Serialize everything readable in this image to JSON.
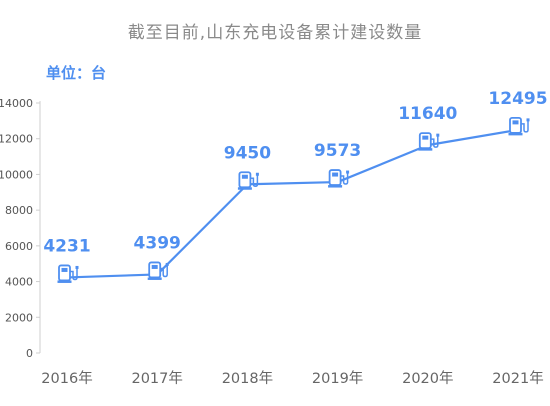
{
  "chart_data": {
    "type": "line",
    "title": "截至目前,山东充电设备累计建设数量",
    "unit": "单位：台",
    "categories": [
      "2016年",
      "2017年",
      "2018年",
      "2019年",
      "2020年",
      "2021年"
    ],
    "values": [
      4231,
      4399,
      9450,
      9573,
      11640,
      12495
    ],
    "data_labels": [
      "4231",
      "4399",
      "9450",
      "9573",
      "11640",
      "12495"
    ],
    "yticks": [
      "0",
      "2000",
      "4000",
      "6000",
      "8000",
      "10000",
      "12000",
      "14000"
    ],
    "ylim": [
      0,
      14000
    ],
    "grid": false,
    "line_color": "#4f8ff0",
    "marker_icon": "charging-station-icon"
  }
}
